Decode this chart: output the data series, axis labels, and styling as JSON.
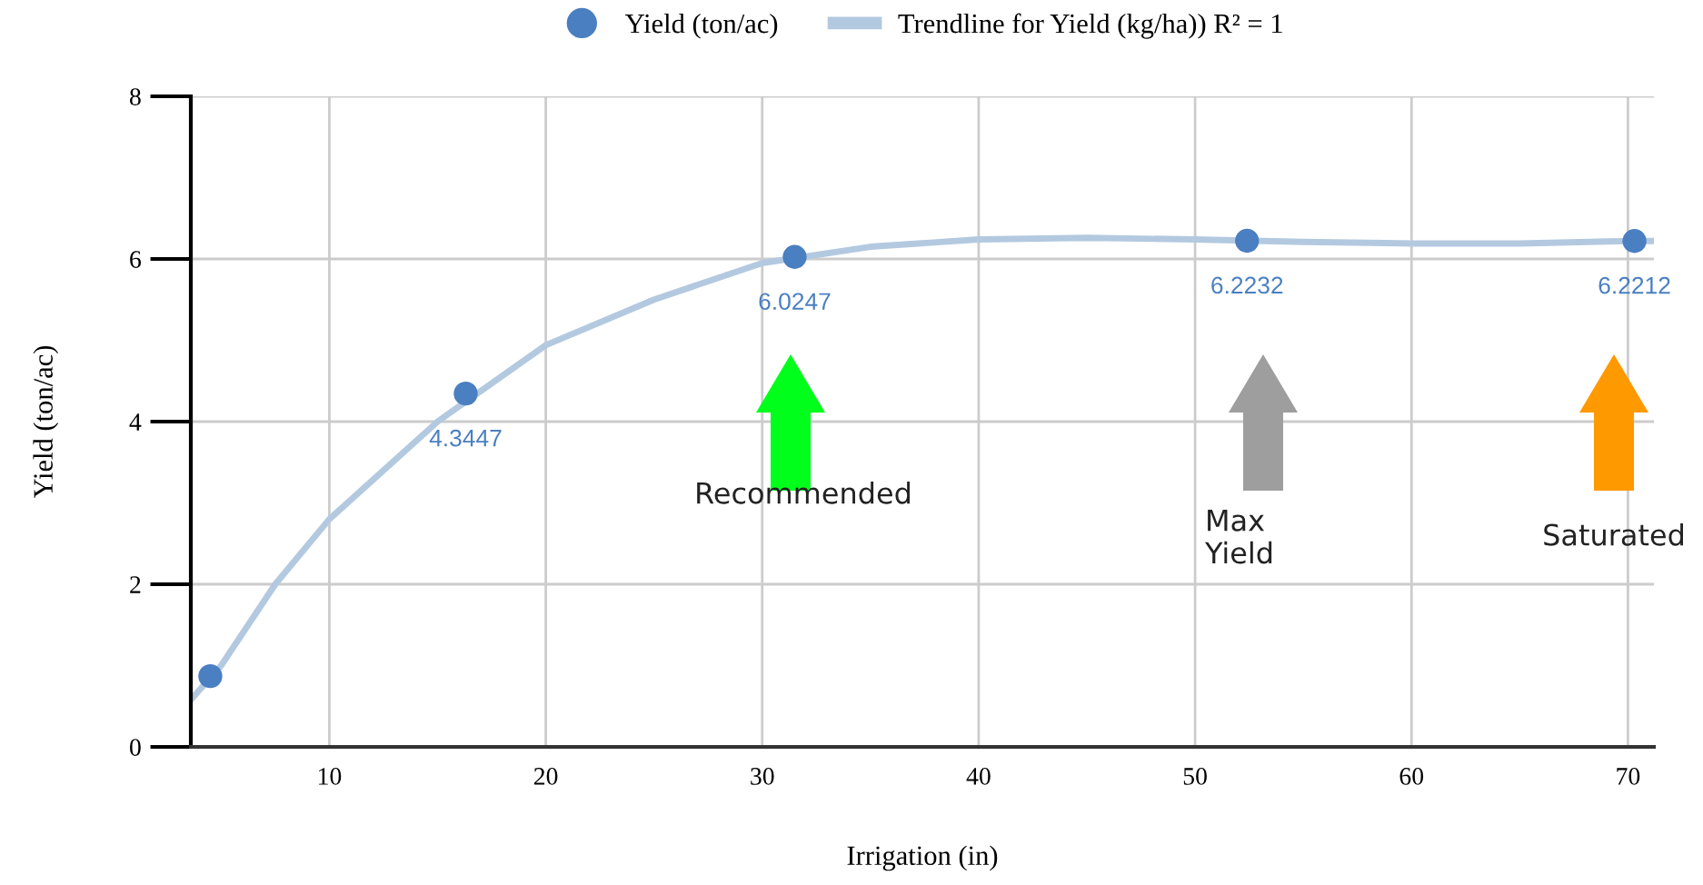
{
  "chart_data": {
    "type": "scatter",
    "xlabel": "Irrigation (in)",
    "ylabel": "Yield (ton/ac)",
    "xlim": [
      3.6,
      71.2
    ],
    "ylim": [
      0,
      8
    ],
    "xticks": [
      10,
      20,
      30,
      40,
      50,
      60,
      70
    ],
    "yticks": [
      0,
      2,
      4,
      6,
      8
    ],
    "grid": true,
    "legend": "top",
    "marker": "circle",
    "series": [
      {
        "name": "Yield (ton/ac)",
        "color": "#4a7fc1",
        "x": [
          4.5,
          16.3,
          31.5,
          52.4,
          70.3
        ],
        "values": [
          0.87,
          4.3447,
          6.0247,
          6.2232,
          6.2212
        ],
        "value_labels": [
          null,
          "4.3447",
          "6.0247",
          "6.2232",
          "6.2212"
        ]
      },
      {
        "name": "Trendline for Yield (kg/ha)) R² = 1",
        "type": "line",
        "color": "#b3c9e0",
        "marker": "none",
        "line_style": "solid",
        "x": [
          3.6,
          5,
          7.5,
          10,
          15,
          20,
          25,
          30,
          35,
          40,
          45,
          50,
          55,
          60,
          65,
          70,
          71.2
        ],
        "values": [
          0.58,
          1.0,
          2.0,
          2.8,
          4.0,
          4.94,
          5.5,
          5.95,
          6.15,
          6.24,
          6.26,
          6.24,
          6.21,
          6.19,
          6.19,
          6.22,
          6.22
        ]
      }
    ],
    "annotations": [
      "Recommended",
      "Max\nYield",
      "Saturated"
    ]
  }
}
